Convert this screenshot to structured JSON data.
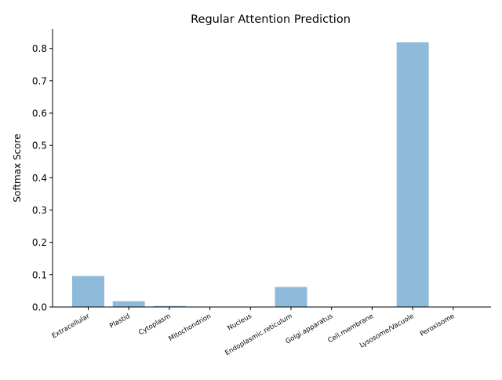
{
  "chart_data": {
    "type": "bar",
    "title": "Regular Attention Prediction",
    "xlabel": "",
    "ylabel": "Softmax Score",
    "categories": [
      "Extracellular",
      "Plastid",
      "Cytoplasm",
      "Mitochondrion",
      "Nucleus",
      "Endoplasmic.reticulum",
      "Golgi.apparatus",
      "Cell.membrane",
      "Lysosome/Vacuole",
      "Peroxisome"
    ],
    "values": [
      0.096,
      0.018,
      0.003,
      0.001,
      0.0005,
      0.062,
      0.0005,
      0.0005,
      0.819,
      0.0005
    ],
    "ylim": [
      0,
      0.86
    ],
    "yticks": [
      "0.0",
      "0.1",
      "0.2",
      "0.3",
      "0.4",
      "0.5",
      "0.6",
      "0.7",
      "0.8"
    ],
    "grid": false,
    "bar_color": "#8fbbda"
  }
}
